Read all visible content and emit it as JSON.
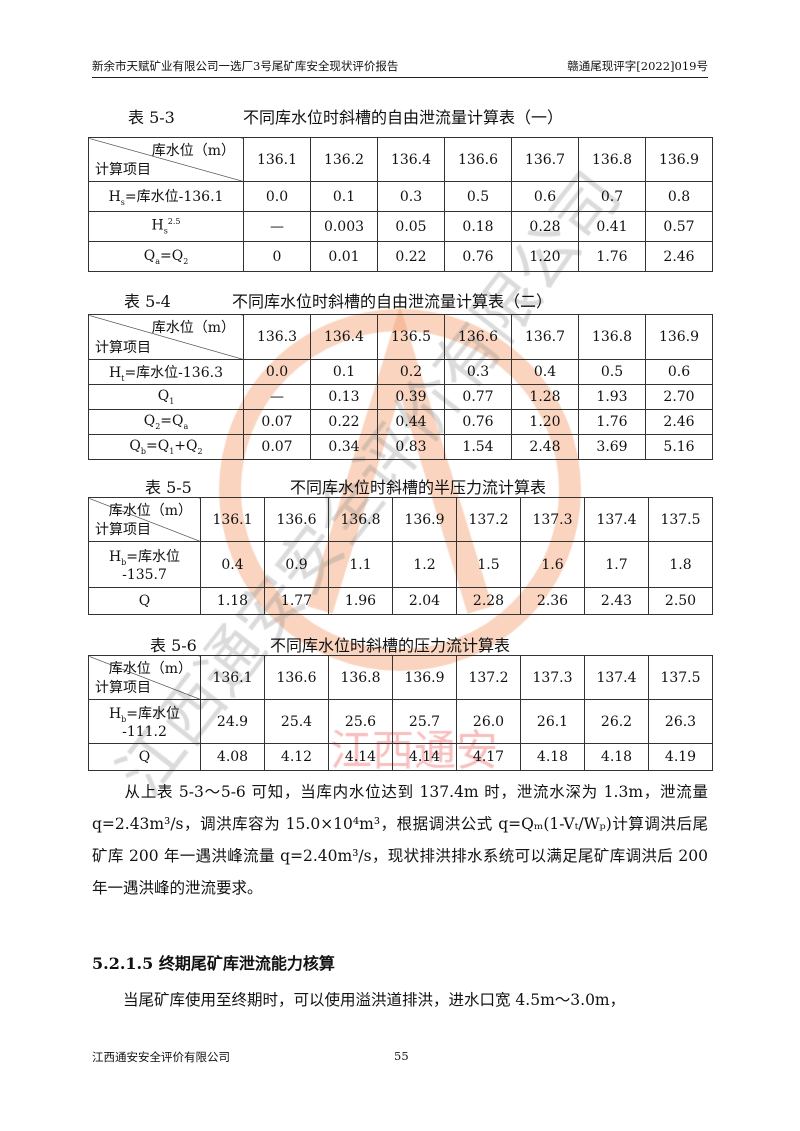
{
  "header": {
    "left": "新余市天赋矿业有限公司一选厂3号尾矿库安全现状评价报告",
    "right": "赣通尾现评字[2022]019号"
  },
  "diag": {
    "top": "库水位（m）",
    "bottom": "计算项目"
  },
  "tables": [
    {
      "caption_no": "表 5-3",
      "caption": "不同库水位时斜槽的自由泄流量计算表（一）",
      "cols": [
        "136.1",
        "136.2",
        "136.4",
        "136.6",
        "136.7",
        "136.8",
        "136.9"
      ],
      "rows": [
        {
          "label": [
            {
              "t": "H"
            },
            {
              "t": "s",
              "s": "sub"
            },
            {
              "t": "=库水位-136.1"
            }
          ],
          "values": [
            "0.0",
            "0.1",
            "0.3",
            "0.5",
            "0.6",
            "0.7",
            "0.8"
          ]
        },
        {
          "label": [
            {
              "t": "H"
            },
            {
              "t": "s",
              "s": "sub"
            },
            {
              "t": "2.5",
              "s": "sup"
            }
          ],
          "values": [
            "—",
            "0.003",
            "0.05",
            "0.18",
            "0.28",
            "0.41",
            "0.57"
          ]
        },
        {
          "label": [
            {
              "t": "Q"
            },
            {
              "t": "a",
              "s": "sub"
            },
            {
              "t": "=Q"
            },
            {
              "t": "2",
              "s": "sub"
            }
          ],
          "values": [
            "0",
            "0.01",
            "0.22",
            "0.76",
            "1.20",
            "1.76",
            "2.46"
          ]
        }
      ]
    },
    {
      "caption_no": "表 5-4",
      "caption": "不同库水位时斜槽的自由泄流量计算表（二）",
      "cols": [
        "136.3",
        "136.4",
        "136.5",
        "136.6",
        "136.7",
        "136.8",
        "136.9"
      ],
      "rows": [
        {
          "label": [
            {
              "t": "H"
            },
            {
              "t": "t",
              "s": "sub"
            },
            {
              "t": "=库水位-136.3"
            }
          ],
          "values": [
            "0.0",
            "0.1",
            "0.2",
            "0.3",
            "0.4",
            "0.5",
            "0.6"
          ]
        },
        {
          "label": [
            {
              "t": "Q"
            },
            {
              "t": "1",
              "s": "sub"
            }
          ],
          "values": [
            "—",
            "0.13",
            "0.39",
            "0.77",
            "1.28",
            "1.93",
            "2.70"
          ]
        },
        {
          "label": [
            {
              "t": "Q"
            },
            {
              "t": "2",
              "s": "sub"
            },
            {
              "t": "=Q"
            },
            {
              "t": "a",
              "s": "sub"
            }
          ],
          "values": [
            "0.07",
            "0.22",
            "0.44",
            "0.76",
            "1.20",
            "1.76",
            "2.46"
          ]
        },
        {
          "label": [
            {
              "t": "Q"
            },
            {
              "t": "b",
              "s": "sub"
            },
            {
              "t": "=Q"
            },
            {
              "t": "1",
              "s": "sub"
            },
            {
              "t": "+Q"
            },
            {
              "t": "2",
              "s": "sub"
            }
          ],
          "values": [
            "0.07",
            "0.34",
            "0.83",
            "1.54",
            "2.48",
            "3.69",
            "5.16"
          ]
        }
      ]
    },
    {
      "caption_no": "表 5-5",
      "caption": "不同库水位时斜槽的半压力流计算表",
      "cols": [
        "136.1",
        "136.6",
        "136.8",
        "136.9",
        "137.2",
        "137.3",
        "137.4",
        "137.5"
      ],
      "rows": [
        {
          "label": [
            {
              "t": "H"
            },
            {
              "t": "b",
              "s": "sub"
            },
            {
              "t": "=库水位 -135.7"
            }
          ],
          "values": [
            "0.4",
            "0.9",
            "1.1",
            "1.2",
            "1.5",
            "1.6",
            "1.7",
            "1.8"
          ]
        },
        {
          "label": [
            {
              "t": "Q"
            }
          ],
          "values": [
            "1.18",
            "1.77",
            "1.96",
            "2.04",
            "2.28",
            "2.36",
            "2.43",
            "2.50"
          ]
        }
      ]
    },
    {
      "caption_no": "表 5-6",
      "caption": "不同库水位时斜槽的压力流计算表",
      "cols": [
        "136.1",
        "136.6",
        "136.8",
        "136.9",
        "137.2",
        "137.3",
        "137.4",
        "137.5"
      ],
      "rows": [
        {
          "label": [
            {
              "t": "H"
            },
            {
              "t": "b",
              "s": "sub"
            },
            {
              "t": "=库水位 -111.2"
            }
          ],
          "values": [
            "24.9",
            "25.4",
            "25.6",
            "25.7",
            "26.0",
            "26.1",
            "26.2",
            "26.3"
          ]
        },
        {
          "label": [
            {
              "t": "Q"
            }
          ],
          "values": [
            "4.08",
            "4.12",
            "4.14",
            "4.14",
            "4.17",
            "4.18",
            "4.18",
            "4.19"
          ]
        }
      ]
    }
  ],
  "para1": "　　从上表 5-3～5-6 可知，当库内水位达到 137.4m 时，泄流水深为 1.3m，泄流量 q=2.43m³/s，调洪库容为 15.0×10⁴m³，根据调洪公式 q=Qₘ(1-Vₜ/Wₚ)计算调洪后尾矿库 200 年一遇洪峰流量 q=2.40m³/s，现状排洪排水系统可以满足尾矿库调洪后 200 年一遇洪峰的泄流要求。",
  "section_heading": "5.2.1.5 终期尾矿库泄流能力核算",
  "para2": "　　当尾矿库使用至终期时，可以使用溢洪道排洪，进水口宽 4.5m～3.0m，",
  "footer": {
    "company": "江西通安安全评价有限公司",
    "page": "55"
  },
  "watermark": {
    "text": "江西通安安全评价有限公司",
    "stamp_text": "江西通安",
    "color": "#f5a070"
  }
}
